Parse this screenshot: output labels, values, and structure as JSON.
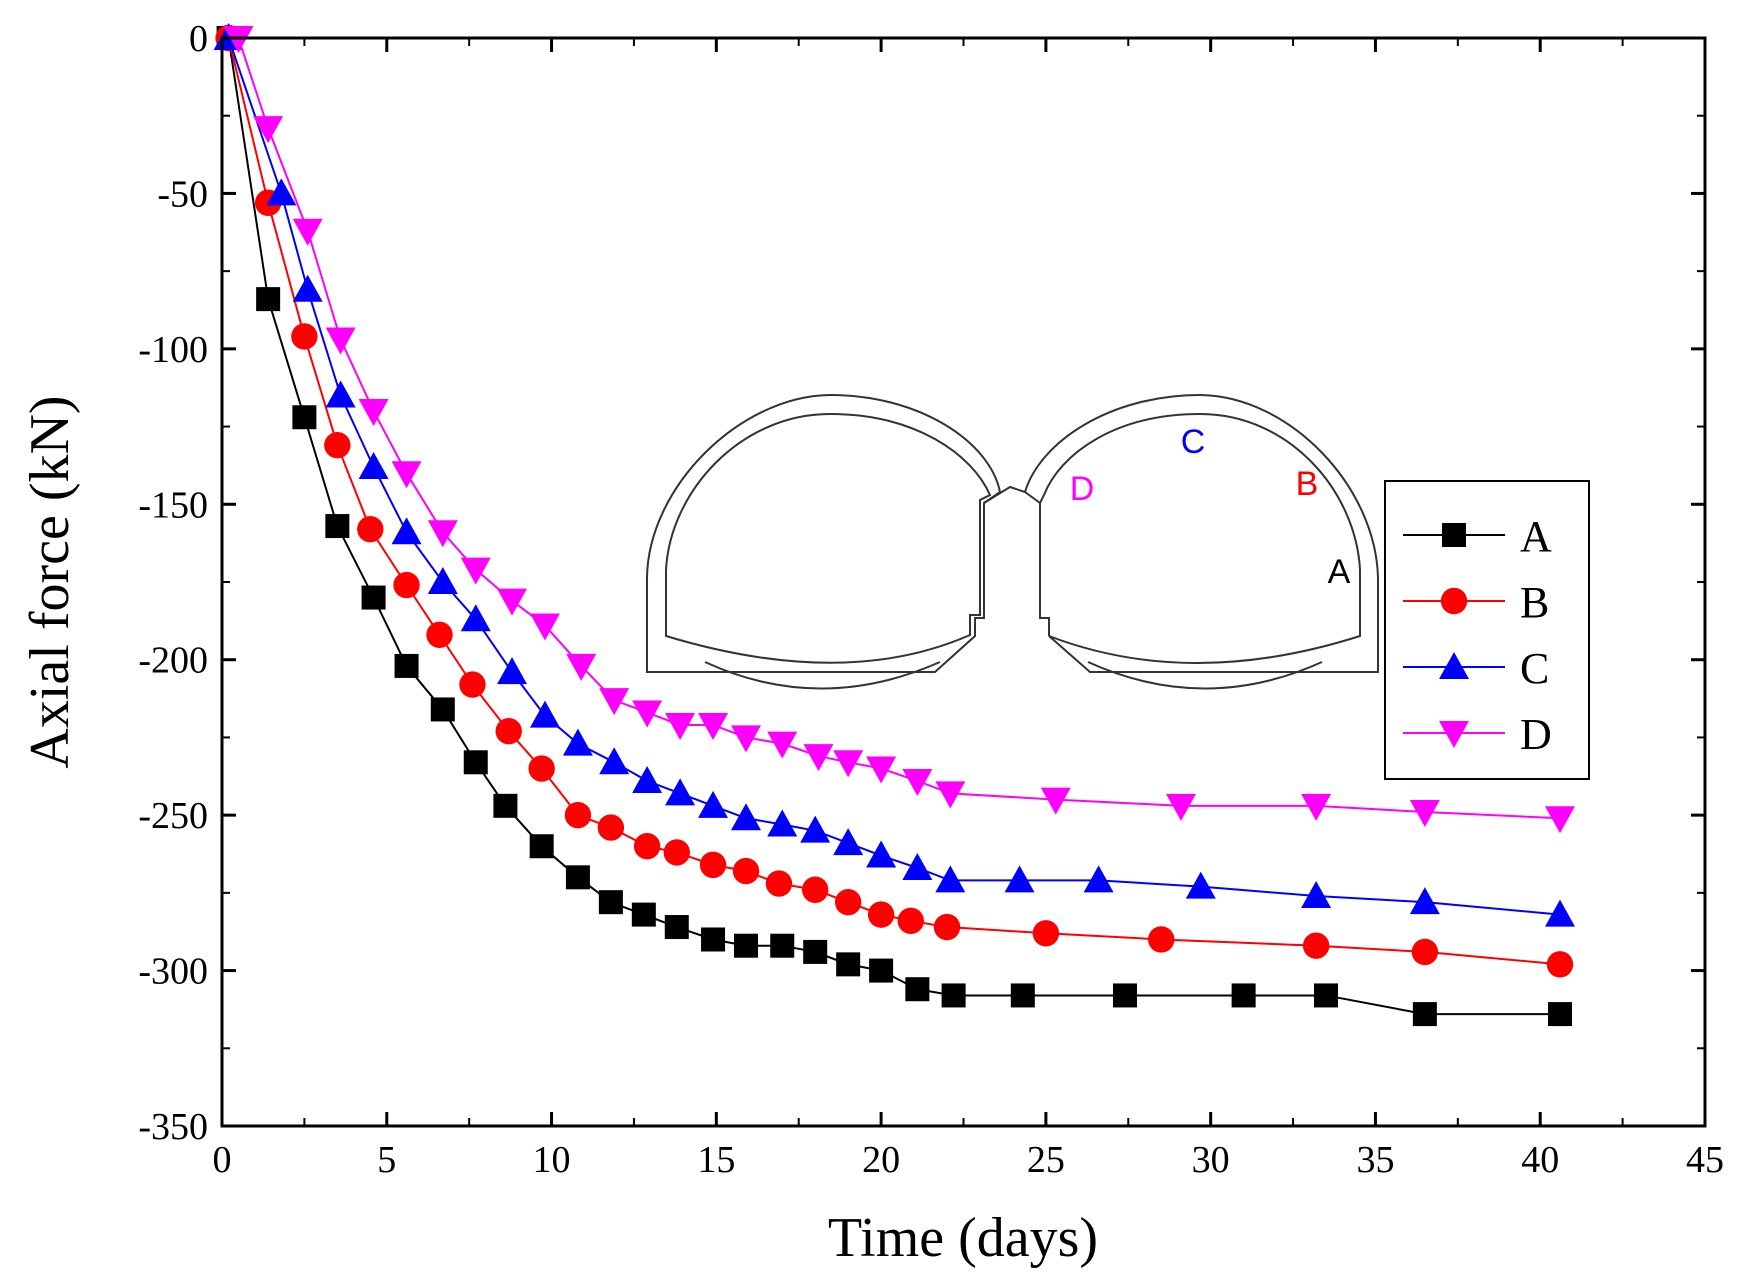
{
  "chart_data": {
    "type": "line",
    "title": "",
    "xlabel": "Time (days)",
    "ylabel": "Axial force (kN)",
    "xlim": [
      0,
      45
    ],
    "ylim": [
      -350,
      0
    ],
    "x_ticks": [
      0,
      5,
      10,
      15,
      20,
      25,
      30,
      35,
      40,
      45
    ],
    "y_ticks": [
      0,
      -50,
      -100,
      -150,
      -200,
      -250,
      -300,
      -350
    ],
    "grid": false,
    "legend_position": "right",
    "series": [
      {
        "name": "A",
        "color": "#000000",
        "marker": "square",
        "x": [
          0.2,
          1.4,
          2.5,
          3.5,
          4.6,
          5.6,
          6.7,
          7.7,
          8.6,
          9.7,
          10.8,
          11.8,
          12.8,
          13.8,
          14.9,
          15.9,
          17.0,
          18.0,
          19.0,
          20.0,
          21.1,
          22.2,
          24.3,
          27.4,
          31.0,
          33.5,
          36.5,
          40.6
        ],
        "values": [
          0,
          -84,
          -122,
          -157,
          -180,
          -202,
          -216,
          -233,
          -247,
          -260,
          -270,
          -278,
          -282,
          -286,
          -290,
          -292,
          -292,
          -294,
          -298,
          -300,
          -306,
          -308,
          -308,
          -308,
          -308,
          -308,
          -314,
          -314
        ]
      },
      {
        "name": "B",
        "color": "#ff0000",
        "marker": "circle",
        "x": [
          0.2,
          1.4,
          2.5,
          3.5,
          4.5,
          5.6,
          6.6,
          7.6,
          8.7,
          9.7,
          10.8,
          11.8,
          12.9,
          13.8,
          14.9,
          15.9,
          16.9,
          18.0,
          19.0,
          20.0,
          20.9,
          22.0,
          25.0,
          28.5,
          33.2,
          36.5,
          40.6
        ],
        "values": [
          0,
          -53,
          -96,
          -131,
          -158,
          -176,
          -192,
          -208,
          -223,
          -235,
          -250,
          -254,
          -260,
          -262,
          -266,
          -268,
          -272,
          -274,
          -278,
          -282,
          -284,
          -286,
          -288,
          -290,
          -292,
          -294,
          -298
        ]
      },
      {
        "name": "C",
        "color": "#0000ff",
        "marker": "triangle-up",
        "x": [
          0.2,
          1.8,
          2.6,
          3.6,
          4.6,
          5.6,
          6.7,
          7.7,
          8.8,
          9.8,
          10.8,
          11.9,
          12.9,
          13.9,
          14.9,
          15.9,
          17.0,
          18.0,
          19.0,
          20.0,
          21.1,
          22.1,
          24.2,
          26.6,
          29.7,
          33.2,
          36.5,
          40.6
        ],
        "values": [
          0,
          -50,
          -81,
          -115,
          -138,
          -159,
          -175,
          -187,
          -204,
          -218,
          -227,
          -233,
          -239,
          -243,
          -247,
          -251,
          -253,
          -255,
          -259,
          -263,
          -267,
          -271,
          -271,
          -271,
          -273,
          -276,
          -278,
          -282
        ]
      },
      {
        "name": "D",
        "color": "#ff00ff",
        "marker": "triangle-down",
        "x": [
          0.5,
          1.4,
          2.6,
          3.6,
          4.6,
          5.6,
          6.7,
          7.7,
          8.8,
          9.8,
          10.9,
          11.9,
          12.9,
          13.9,
          14.9,
          15.9,
          17.0,
          18.1,
          19.0,
          20.0,
          21.1,
          22.1,
          25.3,
          29.1,
          33.2,
          36.5,
          40.6
        ],
        "values": [
          0,
          -29,
          -62,
          -97,
          -120,
          -140,
          -159,
          -171,
          -181,
          -189,
          -202,
          -213,
          -217,
          -221,
          -221,
          -225,
          -227,
          -231,
          -233,
          -235,
          -239,
          -243,
          -245,
          -247,
          -247,
          -249,
          -251
        ]
      }
    ],
    "inset_labels": [
      {
        "text": "C",
        "color": "#0000ff"
      },
      {
        "text": "D",
        "color": "#ff00ff"
      },
      {
        "text": "B",
        "color": "#ff0000"
      },
      {
        "text": "A",
        "color": "#000000"
      }
    ]
  }
}
